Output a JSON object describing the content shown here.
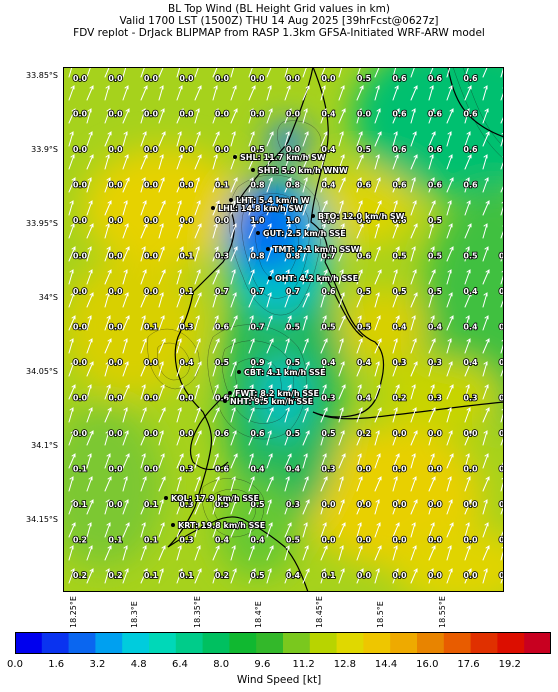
{
  "header": {
    "line1": "BL Top Wind (BL Height Grid values in km)",
    "line2": "Valid 1700 LST (1500Z) THU 14 Aug 2025 [39hrFcst@0627z]",
    "line3": "FDV replot - DrJack BLIPMAP from RASP 1.3km GFSA-Initiated WRF-ARW model"
  },
  "lat_labels": [
    "33.85°S",
    "33.9°S",
    "33.95°S",
    "34°S",
    "34.05°S",
    "34.1°S",
    "34.15°S"
  ],
  "lon_labels": [
    "18.25°E",
    "18.3°E",
    "18.35°E",
    "18.4°E",
    "18.45°E",
    "18.5°E",
    "18.55°E"
  ],
  "grid_values": [
    [
      "0.0",
      "0.0",
      "0.0",
      "0.0",
      "0.0",
      "0.0",
      "0.0",
      "0.0",
      "0.5",
      "0.6",
      "0.6",
      "0.6"
    ],
    [
      "0.0",
      "0.0",
      "0.0",
      "0.0",
      "0.0",
      "0.0",
      "0.0",
      "0.4",
      "0.0",
      "0.6",
      "0.6",
      "0.6"
    ],
    [
      "0.0",
      "0.0",
      "0.0",
      "0.0",
      "0.0",
      "0.5",
      "0.0",
      "0.4",
      "0.5",
      "0.6",
      "0.6",
      "0.6"
    ],
    [
      "0.0",
      "0.0",
      "0.0",
      "0.0",
      "0.1",
      "0.8",
      "0.8",
      "0.4",
      "0.6",
      "0.6",
      "0.6",
      "0.6"
    ],
    [
      "0.0",
      "0.0",
      "0.0",
      "0.0",
      "0.0",
      "1.0",
      "1.0",
      "0.6",
      "0.6",
      "0.6",
      "0.5"
    ],
    [
      "0.0",
      "0.0",
      "0.0",
      "0.1",
      "0.3",
      "0.8",
      "0.8",
      "0.7",
      "0.6",
      "0.5",
      "0.5",
      "0.5",
      "0.5"
    ],
    [
      "0.0",
      "0.0",
      "0.0",
      "0.1",
      "0.7",
      "0.7",
      "0.7",
      "0.6",
      "0.5",
      "0.5",
      "0.5",
      "0.4",
      "0.4"
    ],
    [
      "0.0",
      "0.0",
      "0.1",
      "0.3",
      "0.6",
      "0.7",
      "0.5",
      "0.5",
      "0.5",
      "0.4",
      "0.4",
      "0.4",
      "0.4"
    ],
    [
      "0.0",
      "0.0",
      "0.0",
      "0.4",
      "0.5",
      "0.9",
      "0.5",
      "0.4",
      "0.4",
      "0.3",
      "0.3",
      "0.4",
      "0.3"
    ],
    [
      "0.0",
      "0.0",
      "0.0",
      "0.0",
      "0.6",
      "0.5",
      "0.5",
      "0.3",
      "0.4",
      "0.2",
      "0.3",
      "0.3",
      "0.0"
    ],
    [
      "0.0",
      "0.0",
      "0.0",
      "0.0",
      "0.6",
      "0.6",
      "0.5",
      "0.5",
      "0.2",
      "0.0",
      "0.0",
      "0.0",
      "0.0"
    ],
    [
      "0.1",
      "0.0",
      "0.0",
      "0.3",
      "0.6",
      "0.4",
      "0.4",
      "0.3",
      "0.0",
      "0.0",
      "0.0",
      "0.0",
      "0.0"
    ],
    [
      "0.1",
      "0.0",
      "0.1",
      "0.3",
      "0.5",
      "0.5",
      "0.3",
      "0.0",
      "0.0",
      "0.0",
      "0.0",
      "0.0",
      "0.0"
    ],
    [
      "0.2",
      "0.1",
      "0.1",
      "0.3",
      "0.4",
      "0.4",
      "0.5",
      "0.0",
      "0.0",
      "0.0",
      "0.0",
      "0.0",
      "0.0"
    ],
    [
      "0.2",
      "0.2",
      "0.1",
      "0.1",
      "0.2",
      "0.5",
      "0.4",
      "0.1",
      "0.0",
      "0.0",
      "0.0",
      "0.0",
      "0.0"
    ]
  ],
  "stations": [
    {
      "name": "SHL: 11.7 km/h SW"
    },
    {
      "name": "SHT: 5.9 km/h WNW"
    },
    {
      "name": "LHT: 5.4 km/h W"
    },
    {
      "name": "LHL: 14.8 km/h SW"
    },
    {
      "name": "BTO: 12.0 km/h SW"
    },
    {
      "name": "GUT: 2.5 km/h SSE"
    },
    {
      "name": "TMT: 2.1 km/h SSW"
    },
    {
      "name": "OHT: 4.2 km/h SSE"
    },
    {
      "name": "CBT: 4.1 km/h SSE"
    },
    {
      "name": "FWT: 8.2 km/h SSE"
    },
    {
      "name": "NHT: 9.5 km/h SSE"
    },
    {
      "name": "KOL: 17.9 km/h SSE"
    },
    {
      "name": "KRT: 19.8 km/h SSE"
    }
  ],
  "colorbar": {
    "label": "Wind Speed [kt]",
    "ticks": [
      "0.0",
      "1.6",
      "3.2",
      "4.8",
      "6.4",
      "8.0",
      "9.6",
      "11.2",
      "12.8",
      "14.4",
      "16.0",
      "17.6",
      "19.2"
    ],
    "colors": [
      "#0000ee",
      "#0a33f0",
      "#0a66f0",
      "#00a0f0",
      "#00ccdd",
      "#00d8b8",
      "#00cc8a",
      "#00c060",
      "#10b830",
      "#33b82a",
      "#7ac81e",
      "#b8d400",
      "#e0d800",
      "#eec600",
      "#eeaa00",
      "#e88400",
      "#e85c00",
      "#e03000",
      "#dc0e00",
      "#c80020"
    ]
  }
}
